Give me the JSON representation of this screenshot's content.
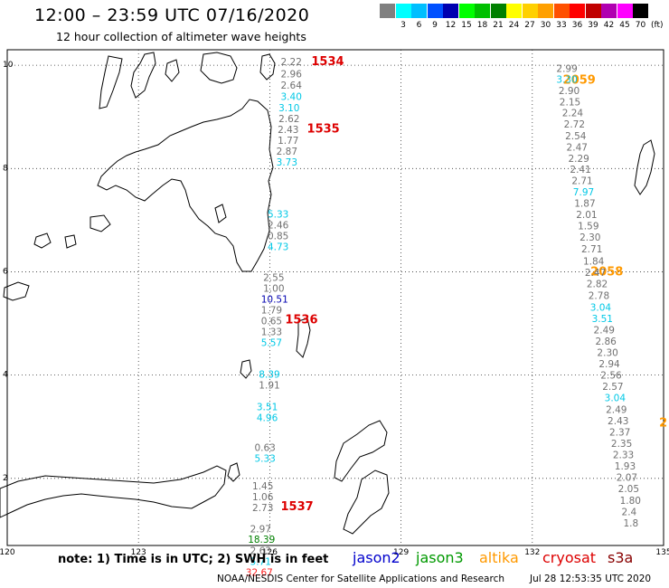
{
  "title": "12:00 – 23:59 UTC 07/16/2020",
  "subtitle": "12 hour collection of altimeter wave heights",
  "color_scale": {
    "unit": "(ft)",
    "swatches": [
      {
        "label": "",
        "color": "#808080"
      },
      {
        "label": "3",
        "color": "#00ffff"
      },
      {
        "label": "6",
        "color": "#00bfff"
      },
      {
        "label": "9",
        "color": "#0050ff"
      },
      {
        "label": "12",
        "color": "#0000b0"
      },
      {
        "label": "15",
        "color": "#00ff00"
      },
      {
        "label": "18",
        "color": "#00c000"
      },
      {
        "label": "21",
        "color": "#008000"
      },
      {
        "label": "24",
        "color": "#ffff00"
      },
      {
        "label": "27",
        "color": "#ffd000"
      },
      {
        "label": "30",
        "color": "#ffa000"
      },
      {
        "label": "33",
        "color": "#ff5000"
      },
      {
        "label": "36",
        "color": "#ff0000"
      },
      {
        "label": "39",
        "color": "#c00000"
      },
      {
        "label": "42",
        "color": "#b000b0"
      },
      {
        "label": "45",
        "color": "#ff00ff"
      },
      {
        "label": "70",
        "color": "#000000"
      }
    ]
  },
  "axes": {
    "x_ticks": [
      {
        "value": 120,
        "label": "120"
      },
      {
        "value": 123,
        "label": "123"
      },
      {
        "value": 126,
        "label": "126"
      },
      {
        "value": 129,
        "label": "129"
      },
      {
        "value": 132,
        "label": "132"
      },
      {
        "value": 135,
        "label": "135"
      }
    ],
    "y_ticks": [
      {
        "value": 10,
        "label": "10"
      },
      {
        "value": 8,
        "label": "8"
      },
      {
        "value": 6,
        "label": "6"
      },
      {
        "value": 4,
        "label": "4"
      },
      {
        "value": 2,
        "label": "2"
      }
    ],
    "x_range": [
      120,
      135
    ],
    "y_range": [
      0.7,
      10.3
    ]
  },
  "pass_labels": [
    {
      "text": "1534",
      "lon": 126.95,
      "lat": 10.0,
      "color": "#dd0000"
    },
    {
      "text": "1535",
      "lon": 126.85,
      "lat": 8.7,
      "color": "#dd0000"
    },
    {
      "text": "1536",
      "lon": 126.35,
      "lat": 5.0,
      "color": "#dd0000"
    },
    {
      "text": "1537",
      "lon": 126.25,
      "lat": 1.38,
      "color": "#dd0000"
    },
    {
      "text": "2059",
      "lon": 132.7,
      "lat": 9.64,
      "color": "#ff9900"
    },
    {
      "text": "2058",
      "lon": 133.33,
      "lat": 5.93,
      "color": "#ff9900"
    },
    {
      "text": "2",
      "lon": 134.9,
      "lat": 3.0,
      "color": "#ff9900"
    }
  ],
  "track_1": [
    {
      "v": "2.22",
      "lon": 126.25,
      "lat": 10.0,
      "c": "#707070"
    },
    {
      "v": "2.96",
      "lon": 126.25,
      "lat": 9.77,
      "c": "#707070"
    },
    {
      "v": "2.64",
      "lon": 126.25,
      "lat": 9.55,
      "c": "#707070"
    },
    {
      "v": "3.40",
      "lon": 126.25,
      "lat": 9.33,
      "c": "#00c8e6"
    },
    {
      "v": "3.10",
      "lon": 126.2,
      "lat": 9.11,
      "c": "#00c8e6"
    },
    {
      "v": "2.62",
      "lon": 126.2,
      "lat": 8.9,
      "c": "#707070"
    },
    {
      "v": "2.43",
      "lon": 126.18,
      "lat": 8.69,
      "c": "#707070"
    },
    {
      "v": "1.77",
      "lon": 126.18,
      "lat": 8.48,
      "c": "#707070"
    },
    {
      "v": "2.87",
      "lon": 126.15,
      "lat": 8.27,
      "c": "#707070"
    },
    {
      "v": "3.73",
      "lon": 126.15,
      "lat": 8.06,
      "c": "#00c8e6"
    },
    {
      "v": "5.33",
      "lon": 125.95,
      "lat": 7.05,
      "c": "#00c8e6"
    },
    {
      "v": "2.46",
      "lon": 125.95,
      "lat": 6.84,
      "c": "#707070"
    },
    {
      "v": "0.85",
      "lon": 125.95,
      "lat": 6.63,
      "c": "#707070"
    },
    {
      "v": "4.73",
      "lon": 125.95,
      "lat": 6.42,
      "c": "#00c8e6"
    },
    {
      "v": "2.55",
      "lon": 125.85,
      "lat": 5.82,
      "c": "#707070"
    },
    {
      "v": "1.00",
      "lon": 125.85,
      "lat": 5.61,
      "c": "#707070"
    },
    {
      "v": "10.51",
      "lon": 125.8,
      "lat": 5.4,
      "c": "#0000b0"
    },
    {
      "v": "1.79",
      "lon": 125.8,
      "lat": 5.19,
      "c": "#707070"
    },
    {
      "v": "0.65",
      "lon": 125.8,
      "lat": 4.98,
      "c": "#707070"
    },
    {
      "v": "1.33",
      "lon": 125.8,
      "lat": 4.77,
      "c": "#707070"
    },
    {
      "v": "5.57",
      "lon": 125.8,
      "lat": 4.56,
      "c": "#00c8e6"
    },
    {
      "v": "8.39",
      "lon": 125.75,
      "lat": 3.95,
      "c": "#00c8e6"
    },
    {
      "v": "1.91",
      "lon": 125.75,
      "lat": 3.74,
      "c": "#707070"
    },
    {
      "v": "3.51",
      "lon": 125.7,
      "lat": 3.32,
      "c": "#00c8e6"
    },
    {
      "v": "4.96",
      "lon": 125.7,
      "lat": 3.11,
      "c": "#00c8e6"
    },
    {
      "v": "0.63",
      "lon": 125.65,
      "lat": 2.53,
      "c": "#707070"
    },
    {
      "v": "5.33",
      "lon": 125.65,
      "lat": 2.32,
      "c": "#00c8e6"
    },
    {
      "v": "1.45",
      "lon": 125.6,
      "lat": 1.79,
      "c": "#707070"
    },
    {
      "v": "1.06",
      "lon": 125.6,
      "lat": 1.58,
      "c": "#707070"
    },
    {
      "v": "2.73",
      "lon": 125.6,
      "lat": 1.37,
      "c": "#707070"
    },
    {
      "v": "2.97",
      "lon": 125.55,
      "lat": 0.95,
      "c": "#707070"
    },
    {
      "v": "18.39",
      "lon": 125.5,
      "lat": 0.75,
      "c": "#008000"
    },
    {
      "v": "2.63",
      "lon": 125.55,
      "lat": 0.53,
      "c": "#707070"
    },
    {
      "v": "5.71",
      "lon": 125.55,
      "lat": 0.32,
      "c": "#00c8e6"
    },
    {
      "v": "32.67",
      "lon": 125.45,
      "lat": 0.11,
      "c": "#ff2020"
    }
  ],
  "track_2": [
    {
      "v": "2.99",
      "lon": 132.55,
      "lat": 9.87,
      "c": "#707070"
    },
    {
      "v": "3.30",
      "lon": 132.55,
      "lat": 9.66,
      "c": "#00c8e6"
    },
    {
      "v": "2.90",
      "lon": 132.6,
      "lat": 9.44,
      "c": "#707070"
    },
    {
      "v": "2.15",
      "lon": 132.62,
      "lat": 9.22,
      "c": "#707070"
    },
    {
      "v": "2.24",
      "lon": 132.68,
      "lat": 9.01,
      "c": "#707070"
    },
    {
      "v": "2.72",
      "lon": 132.72,
      "lat": 8.79,
      "c": "#707070"
    },
    {
      "v": "2.54",
      "lon": 132.75,
      "lat": 8.57,
      "c": "#707070"
    },
    {
      "v": "2.47",
      "lon": 132.78,
      "lat": 8.35,
      "c": "#707070"
    },
    {
      "v": "2.29",
      "lon": 132.82,
      "lat": 8.13,
      "c": "#707070"
    },
    {
      "v": "2.41",
      "lon": 132.86,
      "lat": 7.92,
      "c": "#707070"
    },
    {
      "v": "2.71",
      "lon": 132.9,
      "lat": 7.7,
      "c": "#707070"
    },
    {
      "v": "7.97",
      "lon": 132.93,
      "lat": 7.48,
      "c": "#00c8e6"
    },
    {
      "v": "1.87",
      "lon": 132.96,
      "lat": 7.26,
      "c": "#707070"
    },
    {
      "v": "2.01",
      "lon": 133.0,
      "lat": 7.04,
      "c": "#707070"
    },
    {
      "v": "1.59",
      "lon": 133.04,
      "lat": 6.82,
      "c": "#707070"
    },
    {
      "v": "2.30",
      "lon": 133.08,
      "lat": 6.6,
      "c": "#707070"
    },
    {
      "v": "2.71",
      "lon": 133.12,
      "lat": 6.38,
      "c": "#707070"
    },
    {
      "v": "1.84",
      "lon": 133.16,
      "lat": 6.14,
      "c": "#707070"
    },
    {
      "v": "2.47",
      "lon": 133.2,
      "lat": 5.92,
      "c": "#707070"
    },
    {
      "v": "2.82",
      "lon": 133.24,
      "lat": 5.7,
      "c": "#707070"
    },
    {
      "v": "2.78",
      "lon": 133.28,
      "lat": 5.47,
      "c": "#707070"
    },
    {
      "v": "3.04",
      "lon": 133.32,
      "lat": 5.25,
      "c": "#00c8e6"
    },
    {
      "v": "3.51",
      "lon": 133.36,
      "lat": 5.03,
      "c": "#00c8e6"
    },
    {
      "v": "2.49",
      "lon": 133.4,
      "lat": 4.81,
      "c": "#707070"
    },
    {
      "v": "2.86",
      "lon": 133.44,
      "lat": 4.59,
      "c": "#707070"
    },
    {
      "v": "2.30",
      "lon": 133.48,
      "lat": 4.37,
      "c": "#707070"
    },
    {
      "v": "2.94",
      "lon": 133.52,
      "lat": 4.15,
      "c": "#707070"
    },
    {
      "v": "2.56",
      "lon": 133.56,
      "lat": 3.93,
      "c": "#707070"
    },
    {
      "v": "2.57",
      "lon": 133.6,
      "lat": 3.71,
      "c": "#707070"
    },
    {
      "v": "3.04",
      "lon": 133.65,
      "lat": 3.49,
      "c": "#00c8e6"
    },
    {
      "v": "2.49",
      "lon": 133.68,
      "lat": 3.27,
      "c": "#707070"
    },
    {
      "v": "2.43",
      "lon": 133.72,
      "lat": 3.05,
      "c": "#707070"
    },
    {
      "v": "2.37",
      "lon": 133.76,
      "lat": 2.83,
      "c": "#707070"
    },
    {
      "v": "2.35",
      "lon": 133.8,
      "lat": 2.61,
      "c": "#707070"
    },
    {
      "v": "2.33",
      "lon": 133.84,
      "lat": 2.39,
      "c": "#707070"
    },
    {
      "v": "1.93",
      "lon": 133.88,
      "lat": 2.17,
      "c": "#707070"
    },
    {
      "v": "2.07",
      "lon": 133.92,
      "lat": 1.95,
      "c": "#707070"
    },
    {
      "v": "2.05",
      "lon": 133.96,
      "lat": 1.73,
      "c": "#707070"
    },
    {
      "v": "1.80",
      "lon": 134.0,
      "lat": 1.51,
      "c": "#707070"
    },
    {
      "v": "2.4",
      "lon": 134.04,
      "lat": 1.29,
      "c": "#707070"
    },
    {
      "v": "1.8",
      "lon": 134.08,
      "lat": 1.07,
      "c": "#707070"
    }
  ],
  "note": "note: 1) Time is in UTC; 2) SWH is in feet",
  "legend": [
    {
      "label": "jason2",
      "color": "#0000cc"
    },
    {
      "label": "jason3",
      "color": "#009900"
    },
    {
      "label": "altika",
      "color": "#ff9900"
    },
    {
      "label": "cryosat",
      "color": "#dd0000"
    },
    {
      "label": "s3a",
      "color": "#880000"
    }
  ],
  "credit": "NOAA/NESDIS Center for Satellite Applications and Research",
  "timestamp": "Jul 28 12:53:35 UTC 2020"
}
